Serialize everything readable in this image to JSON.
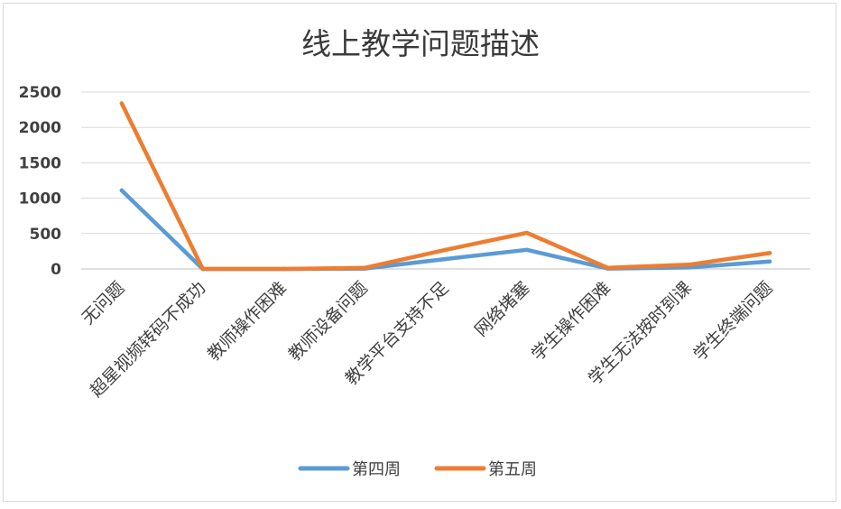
{
  "chart_data": {
    "type": "line",
    "title": "线上教学问题描述",
    "categories": [
      "无问题",
      "超星视频转码不成功",
      "教师操作困难",
      "教师设备问题",
      "教学平台支持不足",
      "网络堵塞",
      "学生操作困难",
      "学生无法按时到课",
      "学生终端问题"
    ],
    "series": [
      {
        "name": "第四周",
        "color": "#5b9bd5",
        "values": [
          1110,
          0,
          0,
          5,
          140,
          270,
          5,
          20,
          105
        ]
      },
      {
        "name": "第五周",
        "color": "#ed7d31",
        "values": [
          2340,
          0,
          0,
          15,
          270,
          510,
          15,
          60,
          225
        ]
      }
    ],
    "ylim": [
      0,
      2500
    ],
    "yticks": [
      "0",
      "500",
      "1000",
      "1500",
      "2000",
      "2500"
    ],
    "grid": true,
    "legend": "bottom"
  }
}
